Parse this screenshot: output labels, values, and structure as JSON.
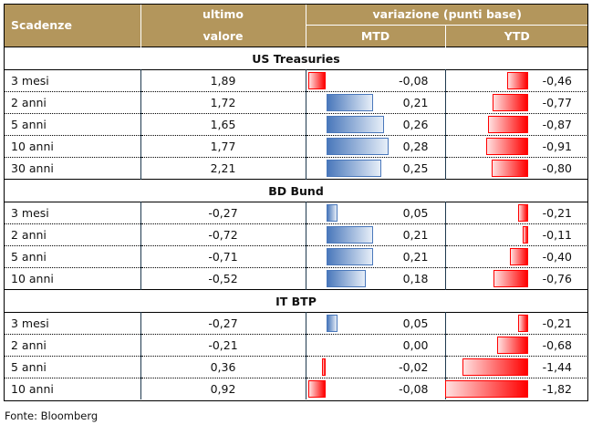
{
  "header": {
    "scadenze": "Scadenze",
    "ultimo": "ultimo",
    "valore": "valore",
    "variazione": "variazione (punti base)",
    "mtd": "MTD",
    "ytd": "YTD"
  },
  "sections": [
    {
      "title": "US Treasuries",
      "rows": [
        {
          "label": "3 mesi",
          "value": "1,89",
          "mtd": "-0,08",
          "ytd": "-0,46",
          "mtd_num": -0.08,
          "ytd_num": -0.46
        },
        {
          "label": "2 anni",
          "value": "1,72",
          "mtd": "0,21",
          "ytd": "-0,77",
          "mtd_num": 0.21,
          "ytd_num": -0.77
        },
        {
          "label": "5 anni",
          "value": "1,65",
          "mtd": "0,26",
          "ytd": "-0,87",
          "mtd_num": 0.26,
          "ytd_num": -0.87
        },
        {
          "label": "10 anni",
          "value": "1,77",
          "mtd": "0,28",
          "ytd": "-0,91",
          "mtd_num": 0.28,
          "ytd_num": -0.91
        },
        {
          "label": "30 anni",
          "value": "2,21",
          "mtd": "0,25",
          "ytd": "-0,80",
          "mtd_num": 0.25,
          "ytd_num": -0.8
        }
      ]
    },
    {
      "title": "BD Bund",
      "rows": [
        {
          "label": "3 mesi",
          "value": "-0,27",
          "mtd": "0,05",
          "ytd": "-0,21",
          "mtd_num": 0.05,
          "ytd_num": -0.21
        },
        {
          "label": "2 anni",
          "value": "-0,72",
          "mtd": "0,21",
          "ytd": "-0,11",
          "mtd_num": 0.21,
          "ytd_num": -0.11
        },
        {
          "label": "5 anni",
          "value": "-0,71",
          "mtd": "0,21",
          "ytd": "-0,40",
          "mtd_num": 0.21,
          "ytd_num": -0.4
        },
        {
          "label": "10 anni",
          "value": "-0,52",
          "mtd": "0,18",
          "ytd": "-0,76",
          "mtd_num": 0.18,
          "ytd_num": -0.76
        }
      ]
    },
    {
      "title": "IT BTP",
      "rows": [
        {
          "label": "3 mesi",
          "value": "-0,27",
          "mtd": "0,05",
          "ytd": "-0,21",
          "mtd_num": 0.05,
          "ytd_num": -0.21
        },
        {
          "label": "2 anni",
          "value": "-0,21",
          "mtd": "0,00",
          "ytd": "-0,68",
          "mtd_num": 0.0,
          "ytd_num": -0.68
        },
        {
          "label": "5 anni",
          "value": "0,36",
          "mtd": "-0,02",
          "ytd": "-1,44",
          "mtd_num": -0.02,
          "ytd_num": -1.44
        },
        {
          "label": "10 anni",
          "value": "0,92",
          "mtd": "-0,08",
          "ytd": "-1,82",
          "mtd_num": -0.08,
          "ytd_num": -1.82
        }
      ]
    }
  ],
  "source": "Fonte: Bloomberg"
}
